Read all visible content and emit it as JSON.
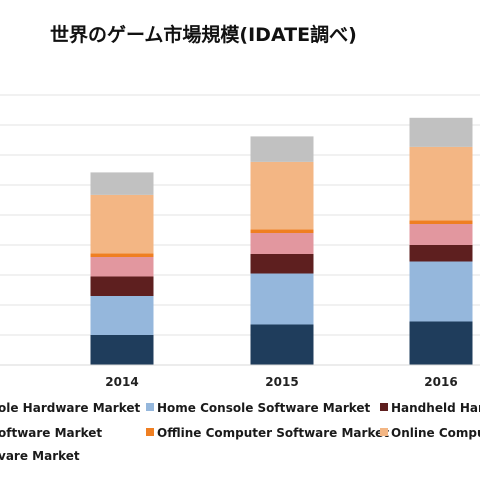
{
  "chart_data": {
    "type": "bar",
    "stacked": true,
    "title": "世界のゲーム市場規模(IDATE調べ)",
    "xlabel": "",
    "ylabel": "",
    "grid": true,
    "legend_position": "bottom",
    "categories": [
      "2014",
      "2015",
      "2016"
    ],
    "series": [
      {
        "name": "ole Hardware Market",
        "color": "#1f3d5c",
        "values": [
          1.0,
          1.35,
          1.45
        ]
      },
      {
        "name": "Home Console Software Market",
        "color": "#95b7dc",
        "values": [
          1.3,
          1.7,
          2.0
        ]
      },
      {
        "name": "Handheld Harc",
        "color": "#5e1f1f",
        "values": [
          0.65,
          0.65,
          0.55
        ]
      },
      {
        "name": "",
        "color": "#e2979f",
        "values": [
          0.65,
          0.7,
          0.7
        ]
      },
      {
        "name": "Offline Computer Software Market",
        "color": "#ef7f22",
        "values": [
          0.12,
          0.12,
          0.12
        ]
      },
      {
        "name": "Online Compu",
        "color": "#f3b684",
        "values": [
          1.95,
          2.25,
          2.45
        ]
      },
      {
        "name": "vare Market",
        "color": "#c1c1c1",
        "values": [
          0.75,
          0.85,
          0.97
        ]
      }
    ],
    "legend_extra": [
      "oftware Market"
    ]
  }
}
